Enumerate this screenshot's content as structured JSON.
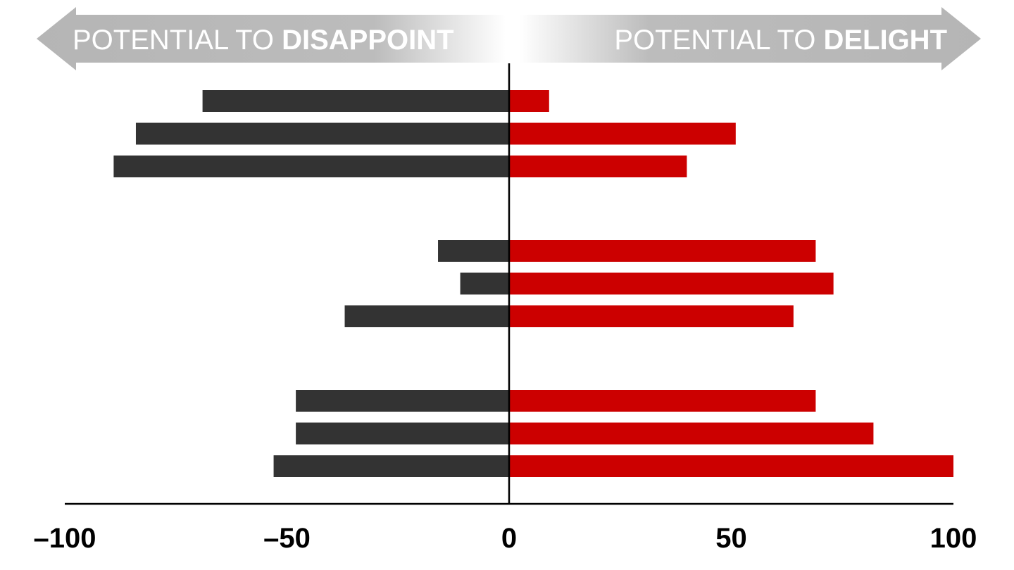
{
  "header": {
    "left_prefix": "POTENTIAL TO ",
    "left_bold": "DISAPPOINT",
    "right_prefix": "POTENTIAL TO ",
    "right_bold": "DELIGHT"
  },
  "chart_data": {
    "type": "bar",
    "orientation": "horizontal-diverging",
    "xlim": [
      -100,
      100
    ],
    "x_ticks": [
      "–100",
      "–50",
      "0",
      "50",
      "100"
    ],
    "x_tick_values": [
      -100,
      -50,
      0,
      50,
      100
    ],
    "colors": {
      "disappoint": "#333333",
      "delight": "#cc0000",
      "axis": "#000000",
      "arrow": "#b8b8b8"
    },
    "groups": [
      {
        "rows": [
          {
            "disappoint": -69,
            "delight": 9
          },
          {
            "disappoint": -84,
            "delight": 51
          },
          {
            "disappoint": -89,
            "delight": 40
          }
        ]
      },
      {
        "rows": [
          {
            "disappoint": -16,
            "delight": 69
          },
          {
            "disappoint": -11,
            "delight": 73
          },
          {
            "disappoint": -37,
            "delight": 64
          }
        ]
      },
      {
        "rows": [
          {
            "disappoint": -48,
            "delight": 69
          },
          {
            "disappoint": -48,
            "delight": 82
          },
          {
            "disappoint": -53,
            "delight": 100
          }
        ]
      }
    ]
  }
}
